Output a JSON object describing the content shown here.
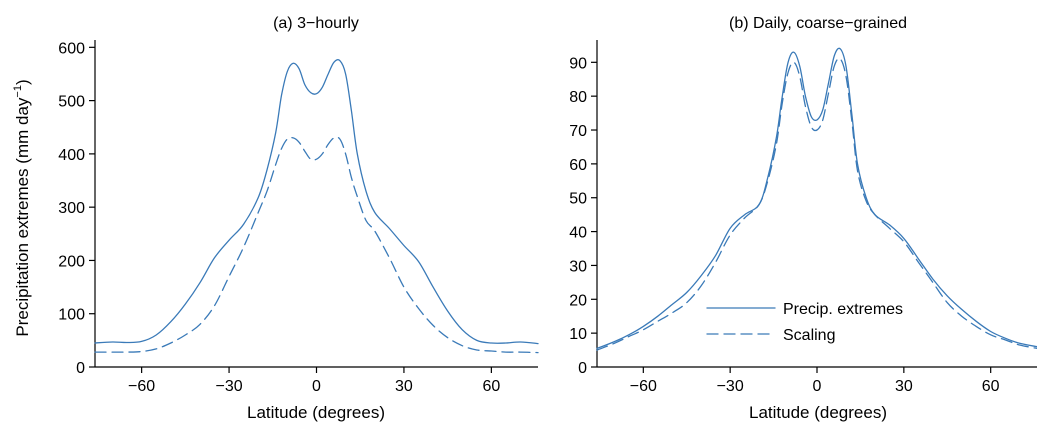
{
  "chart_data": [
    {
      "type": "line",
      "title": "(a) 3−hourly",
      "xlabel": "Latitude (degrees)",
      "ylabel": "Precipitation extremes (mm day",
      "ylabel_sup": "−1",
      "ylabel_close": ")",
      "xlim": [
        -76,
        76
      ],
      "ylim": [
        0,
        610
      ],
      "xticks": [
        -60,
        -30,
        0,
        30,
        60
      ],
      "xtick_labels": [
        "−60",
        "−30",
        "0",
        "30",
        "60"
      ],
      "yticks": [
        0,
        100,
        200,
        300,
        400,
        500,
        600
      ],
      "ytick_labels": [
        "0",
        "100",
        "200",
        "300",
        "400",
        "500",
        "600"
      ],
      "series": [
        {
          "style": "solid",
          "color": "#3a7ab8",
          "x": [
            -76,
            -70,
            -65,
            -60,
            -55,
            -50,
            -45,
            -40,
            -35,
            -30,
            -25,
            -20,
            -17,
            -14,
            -12,
            -10,
            -8,
            -6,
            -4,
            -2,
            0,
            2,
            4,
            6,
            8,
            10,
            12,
            14,
            17,
            20,
            25,
            30,
            35,
            40,
            45,
            50,
            55,
            60,
            65,
            70,
            76
          ],
          "y": [
            45,
            47,
            46,
            48,
            60,
            85,
            118,
            158,
            205,
            238,
            268,
            318,
            370,
            440,
            510,
            555,
            570,
            560,
            530,
            515,
            513,
            525,
            550,
            572,
            575,
            550,
            480,
            400,
            330,
            290,
            260,
            228,
            198,
            150,
            105,
            70,
            50,
            45,
            45,
            47,
            44
          ]
        },
        {
          "style": "dashed",
          "color": "#3a7ab8",
          "x": [
            -76,
            -70,
            -65,
            -60,
            -55,
            -50,
            -45,
            -40,
            -35,
            -30,
            -25,
            -20,
            -17,
            -14,
            -12,
            -10,
            -8,
            -6,
            -4,
            -2,
            0,
            2,
            4,
            6,
            8,
            10,
            12,
            14,
            17,
            20,
            25,
            30,
            35,
            40,
            45,
            50,
            55,
            60,
            65,
            70,
            76
          ],
          "y": [
            28,
            28,
            28,
            29,
            34,
            45,
            60,
            80,
            115,
            170,
            225,
            290,
            330,
            380,
            410,
            428,
            430,
            422,
            405,
            390,
            390,
            400,
            418,
            430,
            428,
            400,
            355,
            320,
            275,
            255,
            205,
            150,
            110,
            78,
            55,
            40,
            32,
            30,
            28,
            28,
            27
          ]
        }
      ]
    },
    {
      "type": "line",
      "title": "(b) Daily, coarse−grained",
      "xlabel": "Latitude (degrees)",
      "ylabel": "",
      "xlim": [
        -76,
        76
      ],
      "ylim": [
        0,
        96
      ],
      "xticks": [
        -60,
        -30,
        0,
        30,
        60
      ],
      "xtick_labels": [
        "−60",
        "−30",
        "0",
        "30",
        "60"
      ],
      "yticks": [
        0,
        10,
        20,
        30,
        40,
        50,
        60,
        70,
        80,
        90
      ],
      "ytick_labels": [
        "0",
        "10",
        "20",
        "30",
        "40",
        "50",
        "60",
        "70",
        "80",
        "90"
      ],
      "legend": {
        "placement": "bottom-right",
        "entries": [
          {
            "label": "Precip. extremes",
            "style": "solid"
          },
          {
            "label": "Scaling",
            "style": "dashed"
          }
        ]
      },
      "series": [
        {
          "style": "solid",
          "color": "#3a7ab8",
          "x": [
            -76,
            -70,
            -65,
            -60,
            -55,
            -50,
            -45,
            -40,
            -35,
            -30,
            -25,
            -20,
            -17,
            -14,
            -12,
            -10,
            -8,
            -6,
            -4,
            -2,
            0,
            2,
            4,
            6,
            8,
            10,
            12,
            14,
            17,
            20,
            25,
            30,
            35,
            40,
            45,
            50,
            55,
            60,
            65,
            70,
            76
          ],
          "y": [
            5.5,
            7.5,
            9.5,
            12,
            15,
            18.5,
            22,
            27,
            33,
            41,
            45,
            48,
            56,
            68,
            80,
            90,
            93,
            89,
            80,
            74,
            73,
            76,
            84,
            92,
            94,
            89,
            75,
            60,
            50,
            45,
            42,
            38,
            32,
            26,
            21,
            17,
            13.5,
            10.5,
            8.5,
            7,
            6
          ]
        },
        {
          "style": "dashed",
          "color": "#3a7ab8",
          "x": [
            -76,
            -70,
            -65,
            -60,
            -55,
            -50,
            -45,
            -40,
            -35,
            -30,
            -25,
            -20,
            -17,
            -14,
            -12,
            -10,
            -8,
            -6,
            -4,
            -2,
            0,
            2,
            4,
            6,
            8,
            10,
            12,
            14,
            17,
            20,
            25,
            30,
            35,
            40,
            45,
            50,
            55,
            60,
            65,
            70,
            76
          ],
          "y": [
            5,
            7,
            9,
            11,
            13.5,
            16,
            19,
            24,
            31,
            39,
            44,
            48,
            55,
            66,
            78,
            87,
            90,
            86,
            77,
            71,
            70,
            73,
            81,
            89,
            91,
            86,
            73,
            58,
            49,
            45,
            41,
            37,
            31,
            25,
            19,
            15,
            12,
            9.5,
            8,
            6.5,
            5.5
          ]
        }
      ]
    }
  ]
}
